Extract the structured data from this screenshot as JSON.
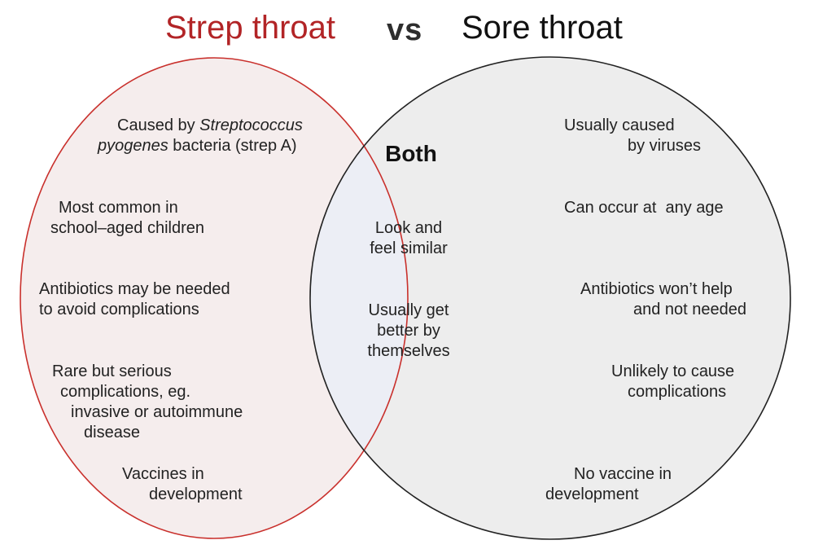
{
  "colors": {
    "accent_red": "#b22426",
    "left_fill": "#f5eded",
    "right_fill": "#ededed",
    "overlap_fill": "#eceef5",
    "left_stroke": "#c9302c",
    "right_stroke": "#222222"
  },
  "header": {
    "left_title": "Strep throat",
    "vs": "vs",
    "right_title": "Sore throat"
  },
  "overlap": {
    "label": "Both",
    "items": [
      {
        "lines": [
          "Look and",
          "feel similar"
        ]
      },
      {
        "lines": [
          "Usually get",
          "better by",
          "themselves"
        ]
      }
    ]
  },
  "left_circle": {
    "items": [
      {
        "line1_pre": "Caused by ",
        "line1_italic": "Streptococcus",
        "line2_italic": "pyogenes",
        "line2_post": " bacteria (strep A)"
      },
      {
        "lines": [
          "Most common in",
          "school–aged children"
        ]
      },
      {
        "lines": [
          "Antibiotics may be needed",
          "to avoid complications"
        ]
      },
      {
        "lines": [
          "Rare but serious",
          "complications, eg.",
          "invasive or autoimmune",
          "disease"
        ]
      },
      {
        "lines": [
          "Vaccines in",
          "development"
        ]
      }
    ]
  },
  "right_circle": {
    "items": [
      {
        "lines": [
          "Usually caused",
          "by viruses"
        ]
      },
      {
        "lines": [
          "Can occur at  any age"
        ]
      },
      {
        "lines": [
          "Antibiotics won’t help",
          "and not needed"
        ]
      },
      {
        "lines": [
          "Unlikely to cause",
          "complications"
        ]
      },
      {
        "lines": [
          "No vaccine in",
          "development"
        ]
      }
    ]
  }
}
